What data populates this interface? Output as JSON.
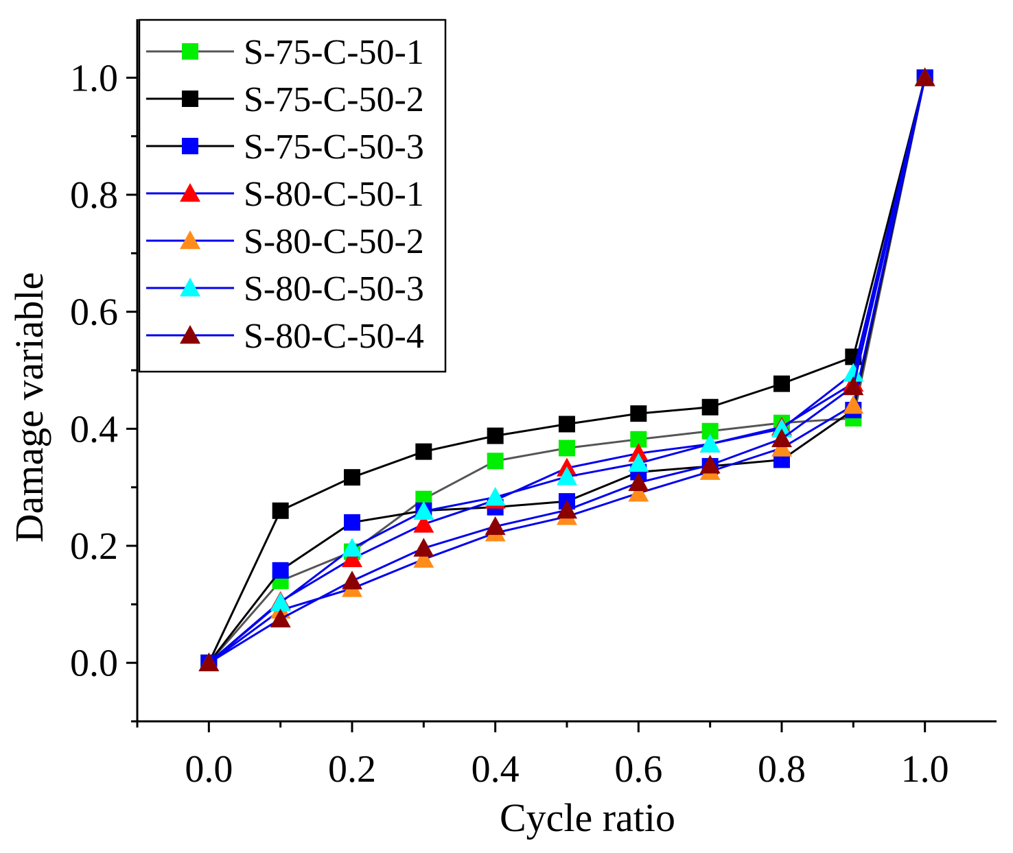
{
  "chart_data": {
    "type": "line",
    "title": "",
    "xlabel": "Cycle ratio",
    "ylabel": "Damage variable",
    "xlim": [
      -0.1,
      1.1
    ],
    "ylim": [
      -0.1,
      1.1
    ],
    "xticks": [
      0.0,
      0.2,
      0.4,
      0.6,
      0.8,
      1.0
    ],
    "yticks": [
      0.0,
      0.2,
      0.4,
      0.6,
      0.8,
      1.0
    ],
    "xtick_labels": [
      "0.0",
      "0.2",
      "0.4",
      "0.6",
      "0.8",
      "1.0"
    ],
    "ytick_labels": [
      "0.0",
      "0.2",
      "0.4",
      "0.6",
      "0.8",
      "1.0"
    ],
    "grid": false,
    "legend_position": "top-left",
    "x": [
      0.0,
      0.1,
      0.2,
      0.3,
      0.4,
      0.5,
      0.6,
      0.7,
      0.8,
      0.9,
      1.0
    ],
    "series": [
      {
        "name": "S-75-C-50-1",
        "marker": "square",
        "marker_color": "#00ee00",
        "line_color": "#555555",
        "values": [
          0.0,
          0.14,
          0.19,
          0.28,
          0.345,
          0.367,
          0.382,
          0.396,
          0.41,
          0.418,
          1.0
        ]
      },
      {
        "name": "S-75-C-50-2",
        "marker": "square",
        "marker_color": "#000000",
        "line_color": "#000000",
        "values": [
          0.0,
          0.26,
          0.317,
          0.361,
          0.388,
          0.408,
          0.426,
          0.437,
          0.477,
          0.523,
          1.0
        ]
      },
      {
        "name": "S-75-C-50-3",
        "marker": "square",
        "marker_color": "#0000ff",
        "line_color": "#000000",
        "values": [
          0.0,
          0.158,
          0.24,
          0.26,
          0.266,
          0.276,
          0.326,
          0.336,
          0.347,
          0.432,
          1.0
        ]
      },
      {
        "name": "S-80-C-50-1",
        "marker": "triangle",
        "marker_color": "#ff0000",
        "line_color": "#0000ee",
        "values": [
          0.0,
          0.105,
          0.178,
          0.237,
          0.278,
          0.333,
          0.358,
          0.374,
          0.403,
          0.478,
          1.0
        ]
      },
      {
        "name": "S-80-C-50-2",
        "marker": "triangle",
        "marker_color": "#ff8c1a",
        "line_color": "#0000ee",
        "values": [
          0.0,
          0.09,
          0.127,
          0.177,
          0.222,
          0.25,
          0.29,
          0.327,
          0.367,
          0.44,
          1.0
        ]
      },
      {
        "name": "S-80-C-50-3",
        "marker": "triangle",
        "marker_color": "#00ffff",
        "line_color": "#0000ee",
        "values": [
          0.0,
          0.103,
          0.196,
          0.259,
          0.283,
          0.318,
          0.341,
          0.374,
          0.4,
          0.495,
          1.0
        ]
      },
      {
        "name": "S-80-C-50-4",
        "marker": "triangle",
        "marker_color": "#8b0000",
        "line_color": "#0000ee",
        "values": [
          0.0,
          0.075,
          0.14,
          0.196,
          0.233,
          0.261,
          0.308,
          0.338,
          0.383,
          0.472,
          1.0
        ]
      }
    ]
  }
}
